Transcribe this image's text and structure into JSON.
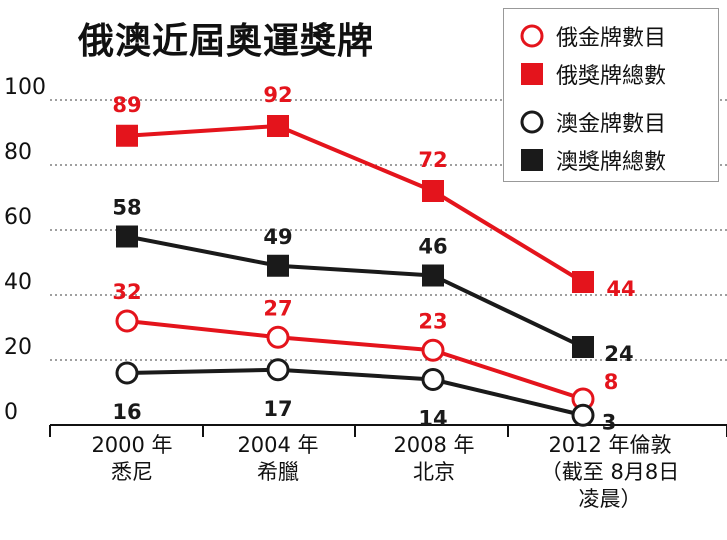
{
  "chart_data": {
    "type": "line",
    "title": "俄澳近屆奧運獎牌",
    "categories": [
      "2000年悉尼",
      "2004年希臘",
      "2008年北京",
      "2012年倫敦（截至8月8日凌晨）"
    ],
    "category_lines": [
      [
        "2000 年",
        "悉尼"
      ],
      [
        "2004 年",
        "希臘"
      ],
      [
        "2008 年",
        "北京"
      ],
      [
        "2012 年倫敦",
        "（截至 8月8日",
        "凌晨）"
      ]
    ],
    "y_ticks": [
      0,
      20,
      40,
      60,
      80,
      100
    ],
    "ylim": [
      0,
      100
    ],
    "grid": true,
    "legend_position": "top-right",
    "series": [
      {
        "name": "俄獎牌總數",
        "values": [
          89,
          92,
          72,
          44
        ],
        "color": "#e4141c",
        "marker": "square-filled"
      },
      {
        "name": "澳獎牌總數",
        "values": [
          58,
          49,
          46,
          24
        ],
        "color": "#1a1a1a",
        "marker": "square-filled"
      },
      {
        "name": "俄金牌數目",
        "values": [
          32,
          27,
          23,
          8
        ],
        "color": "#e4141c",
        "marker": "circle-open"
      },
      {
        "name": "澳金牌數目",
        "values": [
          16,
          17,
          14,
          3
        ],
        "color": "#1a1a1a",
        "marker": "circle-open"
      }
    ],
    "legend": [
      {
        "name": "俄金牌數目",
        "color": "#e4141c",
        "marker": "circle-open"
      },
      {
        "name": "俄獎牌總數",
        "color": "#e4141c",
        "marker": "square-filled"
      },
      {
        "name": "澳金牌數目",
        "color": "#1a1a1a",
        "marker": "circle-open"
      },
      {
        "name": "澳獎牌總數",
        "color": "#1a1a1a",
        "marker": "square-filled"
      }
    ]
  }
}
